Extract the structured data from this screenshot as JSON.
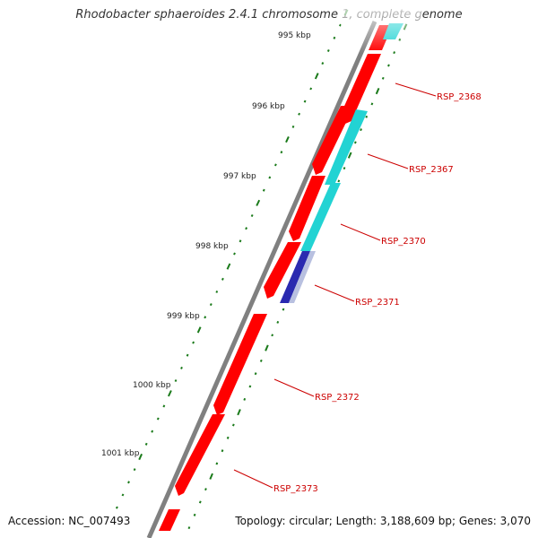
{
  "title": "Rhodobacter sphaeroides 2.4.1 chromosome 1, complete genome",
  "accession_label": "Accession: NC_007493",
  "summary_label": "Topology: circular; Length: 3,188,609 bp; Genes: 3,070",
  "colors": {
    "backbone": "#808080",
    "gene_forward": "#ff0000",
    "gene_reverse": "#22d3d3",
    "gene_reverse_selected": "#2a2ab0",
    "tick": "#1a7a1a",
    "label": "#cc0000",
    "ruler_text": "#222222"
  },
  "ruler": {
    "labels": [
      "995 kbp",
      "996 kbp",
      "997 kbp",
      "998 kbp",
      "999 kbp",
      "1000 kbp",
      "1001 kbp"
    ]
  },
  "genes": [
    {
      "name": "RSP_2368",
      "strand": "reverse"
    },
    {
      "name": "RSP_2367",
      "strand": "reverse"
    },
    {
      "name": "RSP_2370",
      "strand": "reverse"
    },
    {
      "name": "RSP_2371",
      "strand": "reverse"
    },
    {
      "name": "RSP_2372",
      "strand": "forward"
    },
    {
      "name": "RSP_2373",
      "strand": "forward"
    }
  ]
}
